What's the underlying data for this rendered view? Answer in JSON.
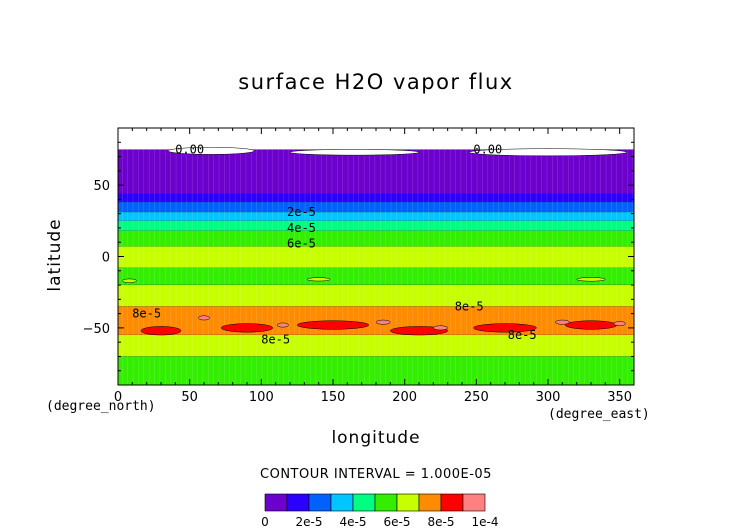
{
  "chart_data": {
    "type": "heatmap",
    "title": "surface H2O vapor flux",
    "xlabel": "longitude",
    "ylabel": "latitude",
    "x_unit": "(degree_east)",
    "y_unit": "(degree_north)",
    "xlim": [
      0,
      360
    ],
    "ylim": [
      -90,
      90
    ],
    "x_ticks": [
      0,
      50,
      100,
      150,
      200,
      250,
      300,
      350
    ],
    "y_ticks": [
      -50,
      0,
      50
    ],
    "contour_interval_label": "CONTOUR INTERVAL = 1.000E-05",
    "levels": [
      {
        "value": 0,
        "color": "#6c00cc"
      },
      {
        "value": 1e-05,
        "color": "#2a00ff"
      },
      {
        "value": 2e-05,
        "color": "#0061ff"
      },
      {
        "value": 3e-05,
        "color": "#00c6ff"
      },
      {
        "value": 4e-05,
        "color": "#00ff80"
      },
      {
        "value": 5e-05,
        "color": "#33ee00"
      },
      {
        "value": 6e-05,
        "color": "#c8ff00"
      },
      {
        "value": 7e-05,
        "color": "#ff8c00"
      },
      {
        "value": 8e-05,
        "color": "#ff0000"
      },
      {
        "value": 9e-05,
        "color": "#ff8080"
      }
    ],
    "latitude_bands": [
      {
        "lat_min": 70,
        "lat_max": 90,
        "value": 0
      },
      {
        "lat_min": 44,
        "lat_max": 75,
        "value": 5e-06
      },
      {
        "lat_min": 38,
        "lat_max": 44,
        "value": 1.5e-05
      },
      {
        "lat_min": 31,
        "lat_max": 38,
        "value": 2.5e-05
      },
      {
        "lat_min": 25,
        "lat_max": 31,
        "value": 3.5e-05
      },
      {
        "lat_min": 18,
        "lat_max": 25,
        "value": 4.5e-05
      },
      {
        "lat_min": 7,
        "lat_max": 18,
        "value": 5.5e-05
      },
      {
        "lat_min": -8,
        "lat_max": 7,
        "value": 6.5e-05
      },
      {
        "lat_min": -20,
        "lat_max": -8,
        "value": 5.5e-05
      },
      {
        "lat_min": -35,
        "lat_max": -20,
        "value": 6.5e-05
      },
      {
        "lat_min": -55,
        "lat_max": -35,
        "value": 7.5e-05
      },
      {
        "lat_min": -70,
        "lat_max": -55,
        "value": 6.5e-05
      },
      {
        "lat_min": -90,
        "lat_max": -70,
        "value": 5.5e-05
      }
    ],
    "contour_labels": [
      {
        "text": "0.00",
        "lon": 50,
        "lat": 75
      },
      {
        "text": "0.00",
        "lon": 258,
        "lat": 75
      },
      {
        "text": "2e-5",
        "lon": 128,
        "lat": 31
      },
      {
        "text": "4e-5",
        "lon": 128,
        "lat": 20
      },
      {
        "text": "6e-5",
        "lon": 128,
        "lat": 9
      },
      {
        "text": "8e-5",
        "lon": 245,
        "lat": -35
      },
      {
        "text": "8e-5",
        "lon": 20,
        "lat": -40
      },
      {
        "text": "8e-5",
        "lon": 110,
        "lat": -58
      },
      {
        "text": "8e-5",
        "lon": 282,
        "lat": -55
      }
    ],
    "colorbar_labels": [
      "0",
      "2e-5",
      "4e-5",
      "6e-5",
      "8e-5",
      "1e-4"
    ]
  }
}
